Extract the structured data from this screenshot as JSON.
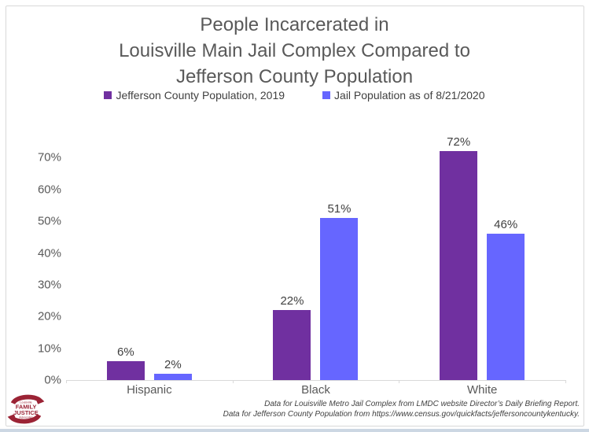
{
  "slide": {
    "background_color": "#ffffff",
    "frame_border_color": "#d9d9d9",
    "bottom_band_color": "#ccd7e3"
  },
  "chart_data": {
    "type": "bar",
    "title": "People Incarcerated in Louisville Main Jail Complex Compared to Jefferson County Population",
    "title_lines": [
      "People Incarcerated in",
      "Louisville Main Jail Complex Compared to",
      "Jefferson County Population"
    ],
    "categories": [
      "Hispanic",
      "Black",
      "White"
    ],
    "series": [
      {
        "name": "Jefferson County Population, 2019",
        "color": "#7030A0",
        "values": [
          6,
          22,
          72
        ]
      },
      {
        "name": "Jail Population as of 8/21/2020",
        "color": "#6666FF",
        "values": [
          2,
          51,
          46
        ]
      }
    ],
    "value_suffix": "%",
    "y_axis": {
      "tick_values": [
        0,
        10,
        20,
        30,
        40,
        50,
        60,
        70
      ],
      "ticks": [
        "0%",
        "10%",
        "20%",
        "30%",
        "40%",
        "50%",
        "60%",
        "70%"
      ],
      "ylim": [
        0,
        80
      ]
    },
    "grid": false,
    "legend_position": "top",
    "footnotes": [
      "Data for Louisville Metro Jail Complex from LMDC website Director’s Daily Briefing Report.",
      "Data for Jefferson County Population from https://www.census.gov/quickfacts/jeffersoncountykentucky."
    ]
  },
  "logo": {
    "text_top": "Louisville",
    "text_line1": "FAMILY",
    "text_line2": "JUSTICE",
    "text_bottom": "Advocates",
    "color": "#9B2335"
  }
}
